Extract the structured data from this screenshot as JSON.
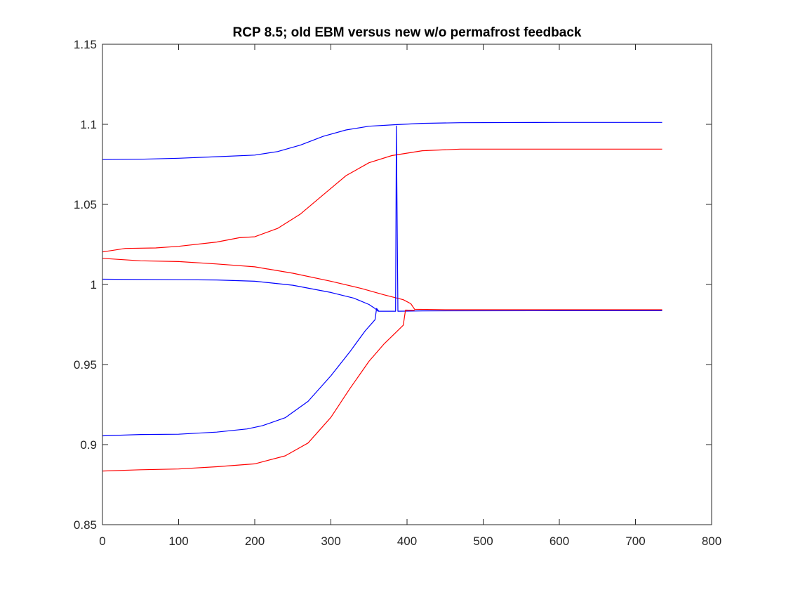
{
  "chart_data": {
    "type": "line",
    "title": "RCP 8.5; old EBM versus new w/o permafrost feedback",
    "xlabel": "",
    "ylabel": "",
    "xlim": [
      0,
      800
    ],
    "ylim": [
      0.85,
      1.15
    ],
    "xticks": [
      0,
      100,
      200,
      300,
      400,
      500,
      600,
      700,
      800
    ],
    "xtick_labels": [
      "0",
      "100",
      "200",
      "300",
      "400",
      "500",
      "600",
      "700",
      "800"
    ],
    "yticks": [
      0.85,
      0.9,
      0.95,
      1.0,
      1.05,
      1.1,
      1.15
    ],
    "ytick_labels": [
      "0.85",
      "0.9",
      "0.95",
      "1",
      "1.05",
      "1.1",
      "1.15"
    ],
    "grid": false,
    "legend": "none",
    "axis_color": "#262626",
    "series": [
      {
        "color": "#0000ff",
        "points": [
          [
            0,
            1.078
          ],
          [
            50,
            1.0782
          ],
          [
            100,
            1.0788
          ],
          [
            150,
            1.0798
          ],
          [
            200,
            1.0808
          ],
          [
            230,
            1.083
          ],
          [
            260,
            1.087
          ],
          [
            290,
            1.0925
          ],
          [
            320,
            1.0965
          ],
          [
            350,
            1.0988
          ],
          [
            385,
            1.0998
          ],
          [
            420,
            1.1006
          ],
          [
            470,
            1.101
          ],
          [
            600,
            1.1012
          ],
          [
            735,
            1.1012
          ]
        ]
      },
      {
        "color": "#ff0000",
        "points": [
          [
            0,
            1.0203
          ],
          [
            30,
            1.0225
          ],
          [
            70,
            1.0228
          ],
          [
            100,
            1.0238
          ],
          [
            150,
            1.0265
          ],
          [
            180,
            1.0292
          ],
          [
            200,
            1.0298
          ],
          [
            230,
            1.035
          ],
          [
            260,
            1.044
          ],
          [
            290,
            1.056
          ],
          [
            320,
            1.068
          ],
          [
            350,
            1.076
          ],
          [
            380,
            1.0805
          ],
          [
            420,
            1.0835
          ],
          [
            470,
            1.0845
          ],
          [
            600,
            1.0845
          ],
          [
            735,
            1.0845
          ]
        ]
      },
      {
        "color": "#ff0000",
        "points": [
          [
            0,
            1.0163
          ],
          [
            50,
            1.0148
          ],
          [
            100,
            1.0143
          ],
          [
            150,
            1.0128
          ],
          [
            200,
            1.011
          ],
          [
            250,
            1.007
          ],
          [
            300,
            1.002
          ],
          [
            340,
            0.9975
          ],
          [
            370,
            0.9935
          ],
          [
            395,
            0.9905
          ],
          [
            405,
            0.988
          ],
          [
            410,
            0.9845
          ],
          [
            450,
            0.9842
          ],
          [
            600,
            0.9842
          ],
          [
            735,
            0.9842
          ]
        ]
      },
      {
        "color": "#0000ff",
        "points": [
          [
            0,
            1.0033
          ],
          [
            100,
            1.003
          ],
          [
            150,
            1.0028
          ],
          [
            200,
            1.002
          ],
          [
            250,
            0.9995
          ],
          [
            300,
            0.995
          ],
          [
            330,
            0.9915
          ],
          [
            350,
            0.9875
          ],
          [
            358,
            0.985
          ],
          [
            362,
            0.9833
          ],
          [
            385,
            0.9833
          ],
          [
            386,
            1.099
          ],
          [
            388,
            0.9833
          ],
          [
            420,
            0.9835
          ],
          [
            600,
            0.9836
          ],
          [
            735,
            0.9836
          ]
        ]
      },
      {
        "color": "#0000ff",
        "points": [
          [
            0,
            0.9055
          ],
          [
            50,
            0.9063
          ],
          [
            100,
            0.9065
          ],
          [
            150,
            0.9078
          ],
          [
            190,
            0.9098
          ],
          [
            210,
            0.9118
          ],
          [
            240,
            0.9168
          ],
          [
            270,
            0.927
          ],
          [
            300,
            0.943
          ],
          [
            325,
            0.958
          ],
          [
            345,
            0.971
          ],
          [
            358,
            0.978
          ],
          [
            360,
            0.985
          ],
          [
            363,
            0.9833
          ]
        ]
      },
      {
        "color": "#ff0000",
        "points": [
          [
            0,
            0.8835
          ],
          [
            50,
            0.8843
          ],
          [
            100,
            0.8848
          ],
          [
            150,
            0.8862
          ],
          [
            200,
            0.888
          ],
          [
            240,
            0.893
          ],
          [
            270,
            0.901
          ],
          [
            300,
            0.917
          ],
          [
            325,
            0.935
          ],
          [
            350,
            0.952
          ],
          [
            370,
            0.963
          ],
          [
            395,
            0.9745
          ],
          [
            398,
            0.984
          ],
          [
            410,
            0.9838
          ]
        ]
      }
    ]
  }
}
